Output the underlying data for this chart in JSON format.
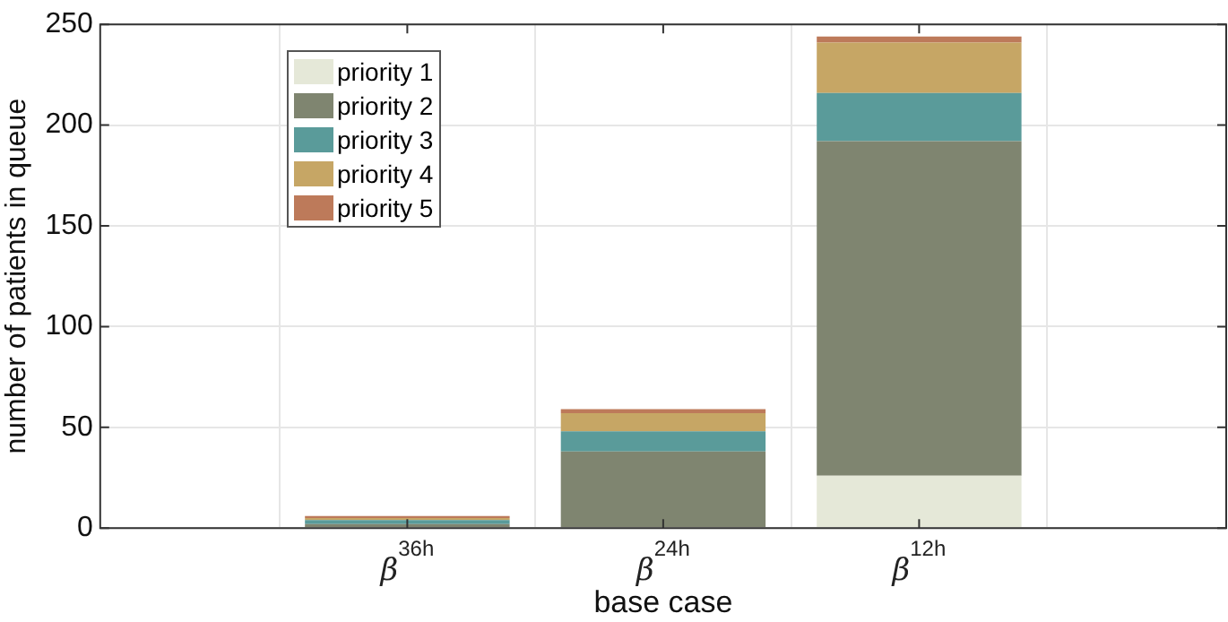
{
  "chart_data": {
    "type": "bar",
    "stacked": true,
    "xlabel": "base case",
    "ylabel": "number of patients in queue",
    "categories": [
      "β$^{36h}$",
      "β$^{24h}$",
      "β$^{12h}$"
    ],
    "series": [
      {
        "name": "priority 1",
        "color": "#e5e8d8",
        "values": [
          0,
          0,
          26
        ]
      },
      {
        "name": "priority 2",
        "color": "#7f8570",
        "values": [
          2,
          38,
          166
        ]
      },
      {
        "name": "priority 3",
        "color": "#5a9b9a",
        "values": [
          2,
          10,
          24
        ]
      },
      {
        "name": "priority 4",
        "color": "#c6a665",
        "values": [
          1,
          9,
          25
        ]
      },
      {
        "name": "priority 5",
        "color": "#bd7a5a",
        "values": [
          1,
          2,
          3
        ]
      }
    ],
    "ylim": [
      0,
      250
    ],
    "yticks": [
      0,
      50,
      100,
      150,
      200,
      250
    ],
    "grid": true,
    "legend": "top left"
  }
}
